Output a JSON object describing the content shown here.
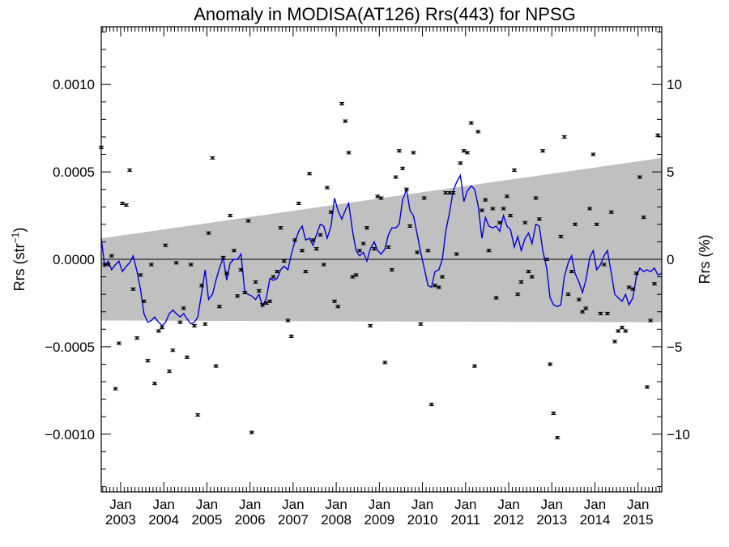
{
  "chart_data": {
    "type": "scatter",
    "title": "Anomaly in MODISA(AT126) Rrs(443) for NPSG",
    "ylabel": "Rrs (str⁻¹)",
    "ylabel_base": "Rrs (str",
    "ylabel_sup": "−1",
    "ylabel_end": ")",
    "y2label": "Rrs (%)",
    "xlim": [
      2002.55,
      2015.55
    ],
    "ylim": [
      -0.00133,
      0.00133
    ],
    "y2lim": [
      -13.3,
      13.3
    ],
    "yticks": [
      -0.001,
      -0.0005,
      0.0,
      0.0005,
      0.001
    ],
    "yticklabels": [
      "−0.0010",
      "−0.0005",
      "0.0000",
      "0.0005",
      "0.0010"
    ],
    "y2ticks": [
      -10,
      -5,
      0,
      5,
      10
    ],
    "y2ticklabels": [
      "−10",
      "−5",
      "0",
      "5",
      "10"
    ],
    "xticks": [
      2003,
      2004,
      2005,
      2006,
      2007,
      2008,
      2009,
      2010,
      2011,
      2012,
      2013,
      2014,
      2015
    ],
    "xticklabels_month": [
      "Jan",
      "Jan",
      "Jan",
      "Jan",
      "Jan",
      "Jan",
      "Jan",
      "Jan",
      "Jan",
      "Jan",
      "Jan",
      "Jan",
      "Jan"
    ],
    "xticklabels_year": [
      "2003",
      "2004",
      "2005",
      "2006",
      "2007",
      "2008",
      "2009",
      "2010",
      "2011",
      "2012",
      "2013",
      "2014",
      "2015"
    ],
    "band": {
      "x0": 2002.55,
      "x1": 2015.55,
      "upper0": 0.00012,
      "upper1": 0.00058,
      "lower0": -0.00035,
      "lower1": -0.00036
    },
    "colors": {
      "band": "#c0c0c0",
      "smooth_line": "#0000dd",
      "points": "#000000",
      "zero_line": "#000000"
    },
    "points": [
      {
        "x": 2002.55,
        "y": 0.00064
      },
      {
        "x": 2002.63,
        "y": -3e-05
      },
      {
        "x": 2002.71,
        "y": -3e-05
      },
      {
        "x": 2002.79,
        "y": 2e-05
      },
      {
        "x": 2002.88,
        "y": -0.00074
      },
      {
        "x": 2002.96,
        "y": -0.00048
      },
      {
        "x": 2003.04,
        "y": 0.00032
      },
      {
        "x": 2003.13,
        "y": 0.00031
      },
      {
        "x": 2003.21,
        "y": 0.00051
      },
      {
        "x": 2003.29,
        "y": -0.00017
      },
      {
        "x": 2003.38,
        "y": -0.00045
      },
      {
        "x": 2003.46,
        "y": -9e-05
      },
      {
        "x": 2003.54,
        "y": -0.00024
      },
      {
        "x": 2003.63,
        "y": -0.00058
      },
      {
        "x": 2003.71,
        "y": -3e-05
      },
      {
        "x": 2003.79,
        "y": -0.00071
      },
      {
        "x": 2003.88,
        "y": -0.00041
      },
      {
        "x": 2003.96,
        "y": -0.00039
      },
      {
        "x": 2004.04,
        "y": 8e-05
      },
      {
        "x": 2004.13,
        "y": -0.00064
      },
      {
        "x": 2004.21,
        "y": -0.00052
      },
      {
        "x": 2004.29,
        "y": -2e-05
      },
      {
        "x": 2004.38,
        "y": -0.00036
      },
      {
        "x": 2004.46,
        "y": -0.00028
      },
      {
        "x": 2004.54,
        "y": -0.00056
      },
      {
        "x": 2004.63,
        "y": -3e-05
      },
      {
        "x": 2004.71,
        "y": -0.00038
      },
      {
        "x": 2004.79,
        "y": -0.00089
      },
      {
        "x": 2004.88,
        "y": -0.00015
      },
      {
        "x": 2004.96,
        "y": -0.00037
      },
      {
        "x": 2005.04,
        "y": 0.00015
      },
      {
        "x": 2005.13,
        "y": 0.00058
      },
      {
        "x": 2005.21,
        "y": -0.00061
      },
      {
        "x": 2005.29,
        "y": -0.00027
      },
      {
        "x": 2005.38,
        "y": 1e-05
      },
      {
        "x": 2005.46,
        "y": -8e-05
      },
      {
        "x": 2005.54,
        "y": 0.00025
      },
      {
        "x": 2005.63,
        "y": 5e-05
      },
      {
        "x": 2005.71,
        "y": -0.00021
      },
      {
        "x": 2005.79,
        "y": -6e-05
      },
      {
        "x": 2005.88,
        "y": -0.00019
      },
      {
        "x": 2005.96,
        "y": 0.00022
      },
      {
        "x": 2006.04,
        "y": -0.00099
      },
      {
        "x": 2006.13,
        "y": -0.00013
      },
      {
        "x": 2006.21,
        "y": -0.00018
      },
      {
        "x": 2006.29,
        "y": -0.00026
      },
      {
        "x": 2006.38,
        "y": -0.00025
      },
      {
        "x": 2006.46,
        "y": -0.00024
      },
      {
        "x": 2006.54,
        "y": -0.0001
      },
      {
        "x": 2006.63,
        "y": -7e-05
      },
      {
        "x": 2006.71,
        "y": 0.00018
      },
      {
        "x": 2006.79,
        "y": -1e-05
      },
      {
        "x": 2006.88,
        "y": -0.00035
      },
      {
        "x": 2006.96,
        "y": -0.00044
      },
      {
        "x": 2007.04,
        "y": 0.00011
      },
      {
        "x": 2007.13,
        "y": 0.00032
      },
      {
        "x": 2007.21,
        "y": 5e-05
      },
      {
        "x": 2007.29,
        "y": -7e-05
      },
      {
        "x": 2007.38,
        "y": 0.00049
      },
      {
        "x": 2007.46,
        "y": 0.00011
      },
      {
        "x": 2007.54,
        "y": 6e-05
      },
      {
        "x": 2007.63,
        "y": 0.00014
      },
      {
        "x": 2007.71,
        "y": -3e-05
      },
      {
        "x": 2007.79,
        "y": 0.00041
      },
      {
        "x": 2007.88,
        "y": 0.00027
      },
      {
        "x": 2007.96,
        "y": -0.00024
      },
      {
        "x": 2008.04,
        "y": -0.00027
      },
      {
        "x": 2008.13,
        "y": 0.00089
      },
      {
        "x": 2008.21,
        "y": 0.00079
      },
      {
        "x": 2008.29,
        "y": 0.00061
      },
      {
        "x": 2008.38,
        "y": -0.0001
      },
      {
        "x": 2008.46,
        "y": -9e-05
      },
      {
        "x": 2008.54,
        "y": 5e-05
      },
      {
        "x": 2008.63,
        "y": 9e-05
      },
      {
        "x": 2008.71,
        "y": 0.00018
      },
      {
        "x": 2008.79,
        "y": -0.00038
      },
      {
        "x": 2008.88,
        "y": 6e-05
      },
      {
        "x": 2008.96,
        "y": 0.00036
      },
      {
        "x": 2009.04,
        "y": 0.00035
      },
      {
        "x": 2009.13,
        "y": -0.00059
      },
      {
        "x": 2009.21,
        "y": 7e-05
      },
      {
        "x": 2009.29,
        "y": -6e-05
      },
      {
        "x": 2009.38,
        "y": 0.00047
      },
      {
        "x": 2009.46,
        "y": 0.00062
      },
      {
        "x": 2009.54,
        "y": 0.00052
      },
      {
        "x": 2009.63,
        "y": 0.0004
      },
      {
        "x": 2009.71,
        "y": 0.00019
      },
      {
        "x": 2009.79,
        "y": 0.00061
      },
      {
        "x": 2009.88,
        "y": 4e-05
      },
      {
        "x": 2009.96,
        "y": -0.00037
      },
      {
        "x": 2010.04,
        "y": 0.00035
      },
      {
        "x": 2010.13,
        "y": 5e-05
      },
      {
        "x": 2010.21,
        "y": -0.00083
      },
      {
        "x": 2010.29,
        "y": -0.00015
      },
      {
        "x": 2010.38,
        "y": -0.00016
      },
      {
        "x": 2010.46,
        "y": -0.0001
      },
      {
        "x": 2010.54,
        "y": 0.00038
      },
      {
        "x": 2010.63,
        "y": 0.00038
      },
      {
        "x": 2010.71,
        "y": 0.00038
      },
      {
        "x": 2010.79,
        "y": 3e-05
      },
      {
        "x": 2010.88,
        "y": 0.00055
      },
      {
        "x": 2010.96,
        "y": 0.00062
      },
      {
        "x": 2011.04,
        "y": 0.00061
      },
      {
        "x": 2011.13,
        "y": 0.00078
      },
      {
        "x": 2011.21,
        "y": -0.00061
      },
      {
        "x": 2011.29,
        "y": 0.00073
      },
      {
        "x": 2011.38,
        "y": 0.00028
      },
      {
        "x": 2011.46,
        "y": 0.00034
      },
      {
        "x": 2011.54,
        "y": 5e-05
      },
      {
        "x": 2011.63,
        "y": 0.00029
      },
      {
        "x": 2011.71,
        "y": -0.00022
      },
      {
        "x": 2011.79,
        "y": 0.00021
      },
      {
        "x": 2011.88,
        "y": 0.00029
      },
      {
        "x": 2011.96,
        "y": 0.00036
      },
      {
        "x": 2012.04,
        "y": 0.00025
      },
      {
        "x": 2012.13,
        "y": 0.00051
      },
      {
        "x": 2012.21,
        "y": -0.0002
      },
      {
        "x": 2012.29,
        "y": -0.00013
      },
      {
        "x": 2012.38,
        "y": 0.00021
      },
      {
        "x": 2012.46,
        "y": -7e-05
      },
      {
        "x": 2012.54,
        "y": -0.0001
      },
      {
        "x": 2012.63,
        "y": 0.00035
      },
      {
        "x": 2012.71,
        "y": 0.00023
      },
      {
        "x": 2012.79,
        "y": 0.00062
      },
      {
        "x": 2012.88,
        "y": 0.0
      },
      {
        "x": 2012.96,
        "y": -0.0006
      },
      {
        "x": 2013.04,
        "y": -0.00088
      },
      {
        "x": 2013.13,
        "y": -0.00102
      },
      {
        "x": 2013.21,
        "y": 0.00013
      },
      {
        "x": 2013.29,
        "y": 0.0007
      },
      {
        "x": 2013.38,
        "y": -0.0002
      },
      {
        "x": 2013.46,
        "y": -7e-05
      },
      {
        "x": 2013.54,
        "y": 0.0002
      },
      {
        "x": 2013.63,
        "y": -0.00023
      },
      {
        "x": 2013.71,
        "y": -0.0003
      },
      {
        "x": 2013.79,
        "y": -0.00028
      },
      {
        "x": 2013.88,
        "y": 0.00029
      },
      {
        "x": 2013.96,
        "y": 0.0006
      },
      {
        "x": 2014.04,
        "y": 0.0002
      },
      {
        "x": 2014.13,
        "y": -0.00031
      },
      {
        "x": 2014.21,
        "y": -3e-05
      },
      {
        "x": 2014.29,
        "y": -0.00031
      },
      {
        "x": 2014.38,
        "y": 0.00027
      },
      {
        "x": 2014.46,
        "y": -0.00047
      },
      {
        "x": 2014.54,
        "y": -0.00041
      },
      {
        "x": 2014.63,
        "y": -0.00039
      },
      {
        "x": 2014.71,
        "y": -0.00041
      },
      {
        "x": 2014.79,
        "y": -0.00016
      },
      {
        "x": 2014.88,
        "y": -0.00017
      },
      {
        "x": 2014.96,
        "y": -8e-05
      },
      {
        "x": 2015.04,
        "y": 0.00047
      },
      {
        "x": 2015.13,
        "y": 0.00024
      },
      {
        "x": 2015.21,
        "y": -0.00073
      },
      {
        "x": 2015.29,
        "y": -0.00035
      },
      {
        "x": 2015.38,
        "y": -0.00014
      },
      {
        "x": 2015.46,
        "y": 0.00071
      }
    ],
    "smooth": [
      [
        2002.55,
        0.00012
      ],
      [
        2002.63,
        -4e-05
      ],
      [
        2002.71,
        -1e-05
      ],
      [
        2002.79,
        -6e-05
      ],
      [
        2002.88,
        -3e-05
      ],
      [
        2002.96,
        -1e-05
      ],
      [
        2003.04,
        -7e-05
      ],
      [
        2003.13,
        -4e-05
      ],
      [
        2003.21,
        -2e-05
      ],
      [
        2003.29,
        2e-05
      ],
      [
        2003.38,
        -7e-05
      ],
      [
        2003.46,
        -0.00017
      ],
      [
        2003.54,
        -0.00031
      ],
      [
        2003.63,
        -0.00036
      ],
      [
        2003.71,
        -0.00035
      ],
      [
        2003.79,
        -0.00033
      ],
      [
        2003.88,
        -0.00036
      ],
      [
        2003.96,
        -0.00038
      ],
      [
        2004.04,
        -0.00036
      ],
      [
        2004.13,
        -0.00031
      ],
      [
        2004.21,
        -0.00029
      ],
      [
        2004.29,
        -0.00031
      ],
      [
        2004.38,
        -0.00033
      ],
      [
        2004.46,
        -0.00031
      ],
      [
        2004.54,
        -0.00034
      ],
      [
        2004.63,
        -0.00037
      ],
      [
        2004.71,
        -0.00036
      ],
      [
        2004.79,
        -0.00033
      ],
      [
        2004.88,
        -0.00019
      ],
      [
        2004.96,
        -6e-05
      ],
      [
        2005.04,
        -0.00023
      ],
      [
        2005.13,
        -0.0002
      ],
      [
        2005.21,
        -0.00012
      ],
      [
        2005.29,
        -5e-05
      ],
      [
        2005.38,
        1e-05
      ],
      [
        2005.46,
        -0.00012
      ],
      [
        2005.54,
        -2e-05
      ],
      [
        2005.63,
        0.0
      ],
      [
        2005.71,
        0.0
      ],
      [
        2005.79,
        3e-05
      ],
      [
        2005.88,
        -0.00019
      ],
      [
        2005.96,
        -0.0002
      ],
      [
        2006.04,
        -0.00021
      ],
      [
        2006.13,
        -0.00023
      ],
      [
        2006.21,
        -0.0002
      ],
      [
        2006.29,
        -0.00027
      ],
      [
        2006.38,
        -0.00022
      ],
      [
        2006.46,
        -0.00011
      ],
      [
        2006.54,
        -0.00012
      ],
      [
        2006.63,
        -0.00011
      ],
      [
        2006.71,
        -6e-05
      ],
      [
        2006.79,
        -4e-05
      ],
      [
        2006.88,
        -6e-05
      ],
      [
        2006.96,
        3e-05
      ],
      [
        2007.04,
        0.0001
      ],
      [
        2007.13,
        0.00016
      ],
      [
        2007.21,
        0.00019
      ],
      [
        2007.29,
        0.00011
      ],
      [
        2007.38,
        0.00012
      ],
      [
        2007.46,
        8e-05
      ],
      [
        2007.54,
        0.00014
      ],
      [
        2007.63,
        0.0002
      ],
      [
        2007.71,
        0.00019
      ],
      [
        2007.79,
        0.00012
      ],
      [
        2007.88,
        0.00019
      ],
      [
        2007.96,
        0.00035
      ],
      [
        2008.04,
        0.00028
      ],
      [
        2008.13,
        0.00023
      ],
      [
        2008.21,
        0.00028
      ],
      [
        2008.29,
        0.00032
      ],
      [
        2008.38,
        0.00016
      ],
      [
        2008.46,
        5e-05
      ],
      [
        2008.54,
        2e-05
      ],
      [
        2008.63,
        4e-05
      ],
      [
        2008.71,
        -1e-05
      ],
      [
        2008.79,
        6e-05
      ],
      [
        2008.88,
        0.0001
      ],
      [
        2008.96,
        5e-05
      ],
      [
        2009.04,
        3e-05
      ],
      [
        2009.13,
        6e-05
      ],
      [
        2009.21,
        0.00014
      ],
      [
        2009.29,
        0.00018
      ],
      [
        2009.38,
        0.00018
      ],
      [
        2009.46,
        0.0002
      ],
      [
        2009.54,
        0.00034
      ],
      [
        2009.63,
        0.0004
      ],
      [
        2009.71,
        0.00028
      ],
      [
        2009.79,
        0.00025
      ],
      [
        2009.88,
        0.00014
      ],
      [
        2009.96,
        4e-05
      ],
      [
        2010.04,
        -5e-05
      ],
      [
        2010.13,
        -0.00015
      ],
      [
        2010.21,
        -0.00016
      ],
      [
        2010.29,
        -7e-05
      ],
      [
        2010.38,
        -6e-05
      ],
      [
        2010.46,
        0.0
      ],
      [
        2010.54,
        0.00016
      ],
      [
        2010.63,
        0.00027
      ],
      [
        2010.71,
        0.00039
      ],
      [
        2010.79,
        0.00044
      ],
      [
        2010.88,
        0.00048
      ],
      [
        2010.96,
        0.00033
      ],
      [
        2011.04,
        0.00039
      ],
      [
        2011.13,
        0.00042
      ],
      [
        2011.21,
        0.0004
      ],
      [
        2011.29,
        0.00031
      ],
      [
        2011.38,
        0.00012
      ],
      [
        2011.46,
        0.00024
      ],
      [
        2011.54,
        0.00019
      ],
      [
        2011.63,
        0.00018
      ],
      [
        2011.71,
        0.00019
      ],
      [
        2011.79,
        0.00016
      ],
      [
        2011.88,
        0.00025
      ],
      [
        2011.96,
        0.00019
      ],
      [
        2012.04,
        0.00017
      ],
      [
        2012.13,
        7e-05
      ],
      [
        2012.21,
        0.00013
      ],
      [
        2012.29,
        5e-05
      ],
      [
        2012.38,
        0.00012
      ],
      [
        2012.46,
        0.00015
      ],
      [
        2012.54,
        9e-05
      ],
      [
        2012.63,
        0.0002
      ],
      [
        2012.71,
        0.00019
      ],
      [
        2012.79,
        5e-05
      ],
      [
        2012.88,
        -5e-05
      ],
      [
        2012.96,
        -0.00022
      ],
      [
        2013.04,
        -0.00026
      ],
      [
        2013.13,
        -0.00027
      ],
      [
        2013.21,
        -0.00026
      ],
      [
        2013.29,
        -0.0001
      ],
      [
        2013.38,
        -2e-05
      ],
      [
        2013.46,
        2e-05
      ],
      [
        2013.54,
        -8e-05
      ],
      [
        2013.63,
        -0.00013
      ],
      [
        2013.71,
        -0.00019
      ],
      [
        2013.79,
        -0.00012
      ],
      [
        2013.88,
        1e-05
      ],
      [
        2013.96,
        5e-05
      ],
      [
        2014.04,
        -6e-05
      ],
      [
        2014.13,
        -3e-05
      ],
      [
        2014.21,
        2e-05
      ],
      [
        2014.29,
        5e-05
      ],
      [
        2014.38,
        -8e-05
      ],
      [
        2014.46,
        -0.0002
      ],
      [
        2014.54,
        -0.00022
      ],
      [
        2014.63,
        -0.00024
      ],
      [
        2014.71,
        -0.0002
      ],
      [
        2014.79,
        -0.00026
      ],
      [
        2014.88,
        -0.00022
      ],
      [
        2014.96,
        -0.0001
      ],
      [
        2015.04,
        -5e-05
      ],
      [
        2015.13,
        -7e-05
      ],
      [
        2015.21,
        -6e-05
      ],
      [
        2015.29,
        -7e-05
      ],
      [
        2015.38,
        -5e-05
      ],
      [
        2015.46,
        -9e-05
      ],
      [
        2015.55,
        -8e-05
      ]
    ]
  }
}
